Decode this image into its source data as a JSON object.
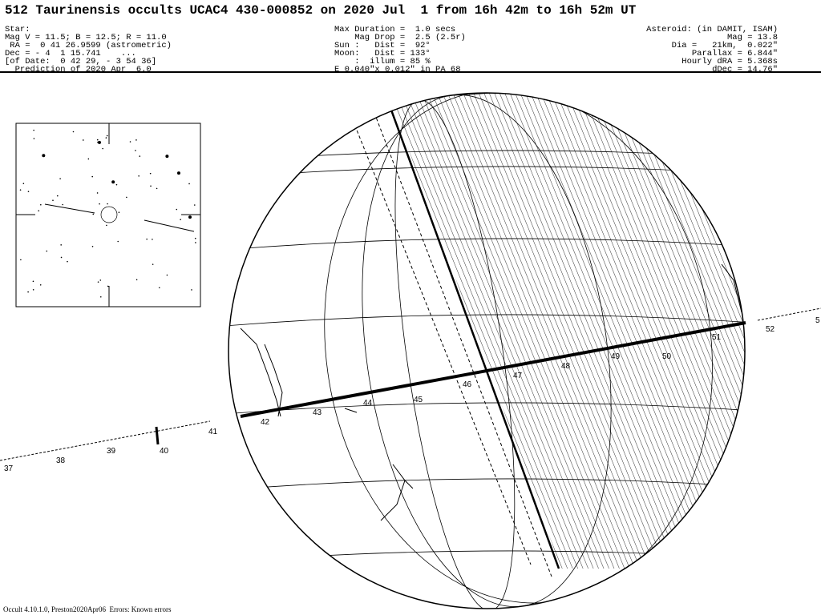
{
  "title": "512 Taurinensis occults UCAC4 430-000852 on 2020 Jul  1 from 16h 42m to 16h 52m UT",
  "star": [
    "Star:",
    "Mag V = 11.5; B = 12.5; R = 11.0",
    " RA =  0 41 26.9599 (astrometric)",
    "Dec = - 4  1 15.741    ...",
    "[of Date:  0 42 29, - 3 54 36]",
    "  Prediction of 2020 Apr  6.0"
  ],
  "event": [
    "Max Duration =  1.0 secs",
    "    Mag Drop =  2.5 (2.5r)",
    "Sun :   Dist =  92°",
    "Moon:   Dist = 133°",
    "    :  illum = 85 %",
    "E 0.040\"x 0.012\" in PA 68"
  ],
  "asteroid": [
    "Asteroid: (in DAMIT, ISAM)",
    "Mag = 13.8",
    "Dia =   21km,  0.022\"",
    "Parallax = 6.844\"",
    "Hourly dRA = 5.368s",
    "dDec = 14.76\""
  ],
  "time_labels": {
    "outside_left": [
      "37",
      "38",
      "39",
      "40",
      "41"
    ],
    "on_globe": [
      "42",
      "43",
      "44",
      "45",
      "46",
      "47",
      "48",
      "49",
      "50",
      "51"
    ],
    "outside_right": [
      "52",
      "5"
    ]
  },
  "footer": "Occult 4.10.1.0, Preston2020Apr06  Errors: Known errors"
}
